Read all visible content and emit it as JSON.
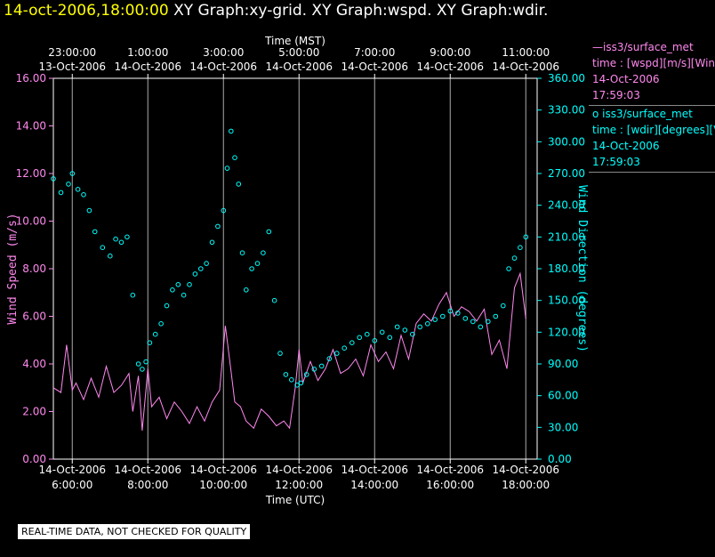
{
  "title": {
    "datetime": "14-oct-2006,18:00:00",
    "graphs": "XY Graph:xy-grid.  XY Graph:wspd.  XY Graph:wdir."
  },
  "legend": [
    {
      "line1": "—iss3/surface_met",
      "line2": "time : [wspd][m/s][Win",
      "line3": "14-Oct-2006",
      "line4": "17:59:03",
      "color": "#ff88ee"
    },
    {
      "line1": "o  iss3/surface_met",
      "line2": "time : [wdir][degrees][V",
      "line3": "14-Oct-2006",
      "line4": "17:59:03",
      "color": "#00ffff"
    }
  ],
  "notice": "REAL-TIME DATA, NOT CHECKED FOR QUALITY",
  "chart_data": {
    "type": "line+scatter",
    "top_axis_label": "Time (MST)",
    "bottom_axis_label": "Time (UTC)",
    "left_axis_label": "Wind Speed (m/s)",
    "right_axis_label": "Wind Direction (degrees)",
    "x_range_hours_utc": [
      5.5,
      18.3
    ],
    "top_ticks": [
      {
        "h": 6,
        "time": "23:00:00",
        "date": "13-Oct-2006"
      },
      {
        "h": 8,
        "time": "1:00:00",
        "date": "14-Oct-2006"
      },
      {
        "h": 10,
        "time": "3:00:00",
        "date": "14-Oct-2006"
      },
      {
        "h": 12,
        "time": "5:00:00",
        "date": "14-Oct-2006"
      },
      {
        "h": 14,
        "time": "7:00:00",
        "date": "14-Oct-2006"
      },
      {
        "h": 16,
        "time": "9:00:00",
        "date": "14-Oct-2006"
      },
      {
        "h": 18,
        "time": "11:00:00",
        "date": "14-Oct-2006"
      }
    ],
    "bottom_ticks": [
      {
        "h": 6,
        "date": "14-Oct-2006",
        "time": "6:00:00"
      },
      {
        "h": 8,
        "date": "14-Oct-2006",
        "time": "8:00:00"
      },
      {
        "h": 10,
        "date": "14-Oct-2006",
        "time": "10:00:00"
      },
      {
        "h": 12,
        "date": "14-Oct-2006",
        "time": "12:00:00"
      },
      {
        "h": 14,
        "date": "14-Oct-2006",
        "time": "14:00:00"
      },
      {
        "h": 16,
        "date": "14-Oct-2006",
        "time": "16:00:00"
      },
      {
        "h": 18,
        "date": "14-Oct-2006",
        "time": "18:00:00"
      }
    ],
    "left_ylim": [
      0,
      16
    ],
    "left_ticks": [
      "0.00",
      "2.00",
      "4.00",
      "6.00",
      "8.00",
      "10.00",
      "12.00",
      "14.00",
      "16.00"
    ],
    "right_ylim": [
      0,
      360
    ],
    "right_ticks": [
      "0.00",
      "30.00",
      "60.00",
      "90.00",
      "120.00",
      "150.00",
      "180.00",
      "210.00",
      "240.00",
      "270.00",
      "300.00",
      "330.00",
      "360.00"
    ],
    "wspd_series": {
      "name": "wspd",
      "color": "#ff88ee",
      "x": [
        5.5,
        5.7,
        5.85,
        6.0,
        6.1,
        6.3,
        6.5,
        6.7,
        6.9,
        7.1,
        7.3,
        7.5,
        7.6,
        7.75,
        7.85,
        8.0,
        8.1,
        8.3,
        8.5,
        8.7,
        8.9,
        9.1,
        9.3,
        9.5,
        9.7,
        9.9,
        10.05,
        10.2,
        10.3,
        10.45,
        10.6,
        10.8,
        11.0,
        11.2,
        11.4,
        11.6,
        11.75,
        11.9,
        12.0,
        12.1,
        12.3,
        12.5,
        12.7,
        12.9,
        13.1,
        13.3,
        13.5,
        13.7,
        13.9,
        14.1,
        14.3,
        14.5,
        14.7,
        14.9,
        15.1,
        15.3,
        15.5,
        15.7,
        15.9,
        16.1,
        16.3,
        16.5,
        16.7,
        16.9,
        17.1,
        17.3,
        17.5,
        17.7,
        17.85,
        18.0
      ],
      "y": [
        3.0,
        2.8,
        4.8,
        2.9,
        3.2,
        2.5,
        3.4,
        2.6,
        3.9,
        2.8,
        3.1,
        3.6,
        2.0,
        3.5,
        1.2,
        3.8,
        2.2,
        2.6,
        1.7,
        2.4,
        2.0,
        1.5,
        2.2,
        1.6,
        2.4,
        2.9,
        5.6,
        3.7,
        2.4,
        2.2,
        1.6,
        1.3,
        2.1,
        1.8,
        1.4,
        1.6,
        1.3,
        3.0,
        4.6,
        3.2,
        4.1,
        3.3,
        3.8,
        4.6,
        3.6,
        3.8,
        4.2,
        3.5,
        4.8,
        4.1,
        4.5,
        3.8,
        5.2,
        4.2,
        5.7,
        6.1,
        5.8,
        6.5,
        7.0,
        6.0,
        6.4,
        6.2,
        5.8,
        6.3,
        4.4,
        5.0,
        3.8,
        7.2,
        7.8,
        5.9
      ]
    },
    "wdir_series": {
      "name": "wdir",
      "color": "#00ffff",
      "x": [
        5.5,
        5.7,
        5.9,
        6.0,
        6.15,
        6.3,
        6.45,
        6.6,
        6.8,
        7.0,
        7.15,
        7.3,
        7.45,
        7.6,
        7.75,
        7.85,
        7.95,
        8.05,
        8.2,
        8.35,
        8.5,
        8.65,
        8.8,
        8.95,
        9.1,
        9.25,
        9.4,
        9.55,
        9.7,
        9.85,
        10.0,
        10.1,
        10.2,
        10.3,
        10.4,
        10.5,
        10.6,
        10.75,
        10.9,
        11.05,
        11.2,
        11.35,
        11.5,
        11.65,
        11.8,
        11.95,
        12.05,
        12.2,
        12.4,
        12.6,
        12.8,
        13.0,
        13.2,
        13.4,
        13.6,
        13.8,
        14.0,
        14.2,
        14.4,
        14.6,
        14.8,
        15.0,
        15.2,
        15.4,
        15.6,
        15.8,
        16.0,
        16.2,
        16.4,
        16.6,
        16.8,
        17.0,
        17.2,
        17.4,
        17.55,
        17.7,
        17.85,
        18.0
      ],
      "y": [
        265,
        252,
        260,
        270,
        255,
        250,
        235,
        215,
        200,
        192,
        208,
        205,
        210,
        155,
        90,
        85,
        92,
        110,
        118,
        128,
        145,
        160,
        165,
        155,
        165,
        175,
        180,
        185,
        205,
        220,
        235,
        275,
        310,
        285,
        260,
        195,
        160,
        180,
        185,
        195,
        215,
        150,
        100,
        80,
        75,
        70,
        72,
        80,
        85,
        88,
        95,
        100,
        105,
        110,
        115,
        118,
        112,
        120,
        115,
        125,
        122,
        118,
        125,
        128,
        132,
        135,
        140,
        138,
        133,
        130,
        125,
        130,
        135,
        145,
        180,
        190,
        200,
        210
      ]
    }
  }
}
